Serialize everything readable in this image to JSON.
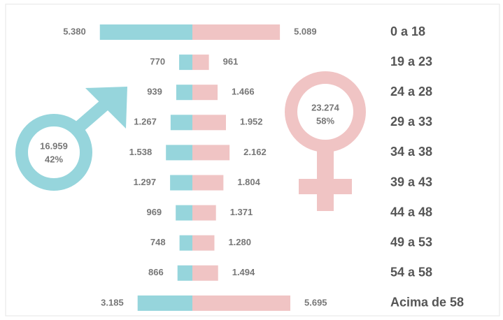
{
  "chart_data": {
    "type": "butterfly",
    "categories": [
      "0 a 18",
      "19 a 23",
      "24 a 28",
      "29 a 33",
      "34 a 38",
      "39 a 43",
      "44 a 48",
      "49 a 53",
      "54 a 58",
      "Acima de 58"
    ],
    "series": [
      {
        "color": "#96d5dc",
        "values": [
          5380,
          770,
          939,
          1267,
          1538,
          1297,
          969,
          748,
          866,
          3185
        ],
        "value_labels": [
          "5.380",
          "770",
          "939",
          "1.267",
          "1.538",
          "1.297",
          "969",
          "748",
          "866",
          "3.185"
        ],
        "total": 16959,
        "total_label": "16.959",
        "share": 42,
        "share_label": "42%"
      },
      {
        "color": "#f0c4c4",
        "values": [
          5089,
          961,
          1466,
          1952,
          2162,
          1804,
          1371,
          1280,
          1494,
          5695
        ],
        "value_labels": [
          "5.089",
          "961",
          "1.466",
          "1.952",
          "2.162",
          "1.804",
          "1.371",
          "1.280",
          "1.494",
          "5.695"
        ],
        "total": 23274,
        "total_label": "23.274",
        "share": 58,
        "share_label": "58%"
      }
    ]
  }
}
